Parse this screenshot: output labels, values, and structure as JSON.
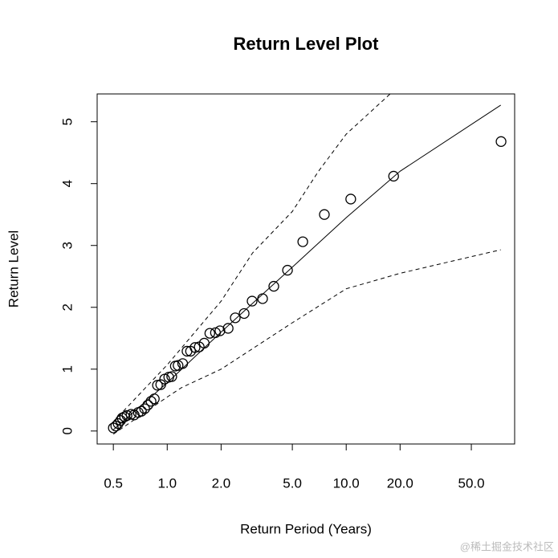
{
  "chart_data": {
    "type": "line",
    "title": "Return Level Plot",
    "x_label": "Return Period (Years)",
    "y_label": "Return Level",
    "xscale": "log",
    "xlim": [
      0.406,
      87.3
    ],
    "ylim": [
      -0.21,
      5.45
    ],
    "xticks": [
      0.5,
      {
        "value": 1,
        "label": "1.0"
      },
      {
        "value": 2,
        "label": "2.0"
      },
      {
        "value": 5,
        "label": "5.0"
      },
      {
        "value": 10,
        "label": "10.0"
      },
      {
        "value": 20,
        "label": "20.0"
      },
      {
        "value": 50,
        "label": "50.0"
      }
    ],
    "yticks": [
      0,
      1,
      2,
      3,
      4,
      5
    ],
    "series": [
      {
        "type": "scatter",
        "color": "#000000",
        "x": [
          0.5,
          0.516,
          0.532,
          0.549,
          0.56,
          0.578,
          0.596,
          0.628,
          0.654,
          0.689,
          0.718,
          0.748,
          0.779,
          0.812,
          0.847,
          0.882,
          0.92,
          0.968,
          1.02,
          1.06,
          1.11,
          1.15,
          1.22,
          1.29,
          1.35,
          1.43,
          1.51,
          1.61,
          1.73,
          1.86,
          1.97,
          2.19,
          2.4,
          2.69,
          2.98,
          3.41,
          3.94,
          4.7,
          5.72,
          7.55,
          10.6,
          18.4,
          73.3
        ],
        "values": [
          0.05,
          0.08,
          0.12,
          0.17,
          0.21,
          0.23,
          0.25,
          0.27,
          0.26,
          0.3,
          0.32,
          0.36,
          0.42,
          0.48,
          0.52,
          0.74,
          0.75,
          0.84,
          0.87,
          0.88,
          1.05,
          1.06,
          1.09,
          1.29,
          1.29,
          1.35,
          1.36,
          1.42,
          1.58,
          1.59,
          1.62,
          1.66,
          1.83,
          1.9,
          2.1,
          2.14,
          2.34,
          2.6,
          3.06,
          3.5,
          3.75,
          4.12,
          4.68
        ]
      },
      {
        "type": "line",
        "linestyle": "solid",
        "color": "#000000",
        "x": [
          0.5,
          1,
          2,
          5,
          10,
          20,
          73
        ],
        "values": [
          0.02,
          0.78,
          1.6,
          2.65,
          3.45,
          4.2,
          5.27
        ]
      },
      {
        "type": "line",
        "linestyle": "dashed",
        "color": "#000000",
        "x": [
          0.5,
          1,
          2,
          3,
          5,
          7,
          10,
          17.6
        ],
        "values": [
          0.15,
          1.07,
          2.1,
          2.88,
          3.55,
          4.2,
          4.8,
          5.45
        ]
      },
      {
        "type": "line",
        "linestyle": "dashed",
        "color": "#000000",
        "x": [
          0.5,
          1,
          1.2,
          2,
          5,
          10,
          20,
          73
        ],
        "values": [
          -0.05,
          0.55,
          0.7,
          1.0,
          1.75,
          2.3,
          2.55,
          2.93
        ]
      }
    ],
    "watermark": "@稀土掘金技术社区"
  }
}
